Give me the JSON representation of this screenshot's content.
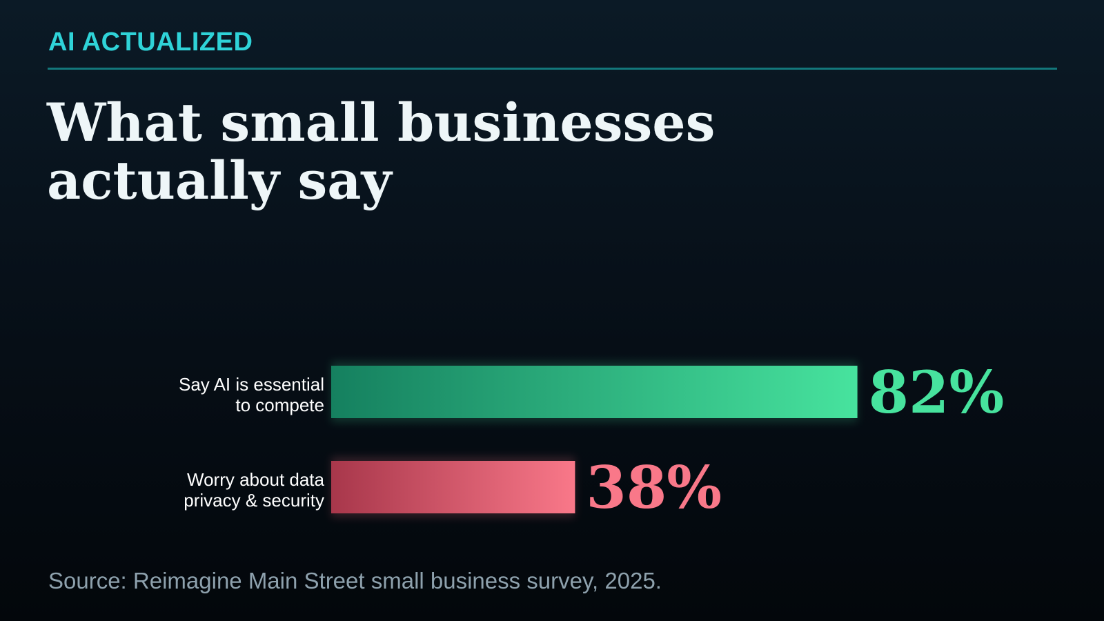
{
  "header": {
    "kicker": "AI ACTUALIZED",
    "headline_line1": "What small businesses",
    "headline_line2": "actually say"
  },
  "chart_data": {
    "type": "bar",
    "orientation": "horizontal",
    "categories": [
      "Say AI is essential to compete",
      "Worry about data privacy & security"
    ],
    "category_label_lines": [
      [
        "Say AI is essential",
        "to compete"
      ],
      [
        "Worry about data",
        "privacy & security"
      ]
    ],
    "values": [
      82,
      38
    ],
    "value_labels": [
      "82%",
      "38%"
    ],
    "units": "%",
    "xlim": [
      0,
      100
    ],
    "bar_colors": [
      {
        "from": "#15805f",
        "to": "#47e39e"
      },
      {
        "from": "#a8374b",
        "to": "#f97889"
      }
    ],
    "value_label_colors": [
      "#47e39e",
      "#f97889"
    ],
    "grid": false,
    "legend": "none"
  },
  "footer": {
    "source": "Source: Reimagine Main Street small business survey, 2025."
  }
}
